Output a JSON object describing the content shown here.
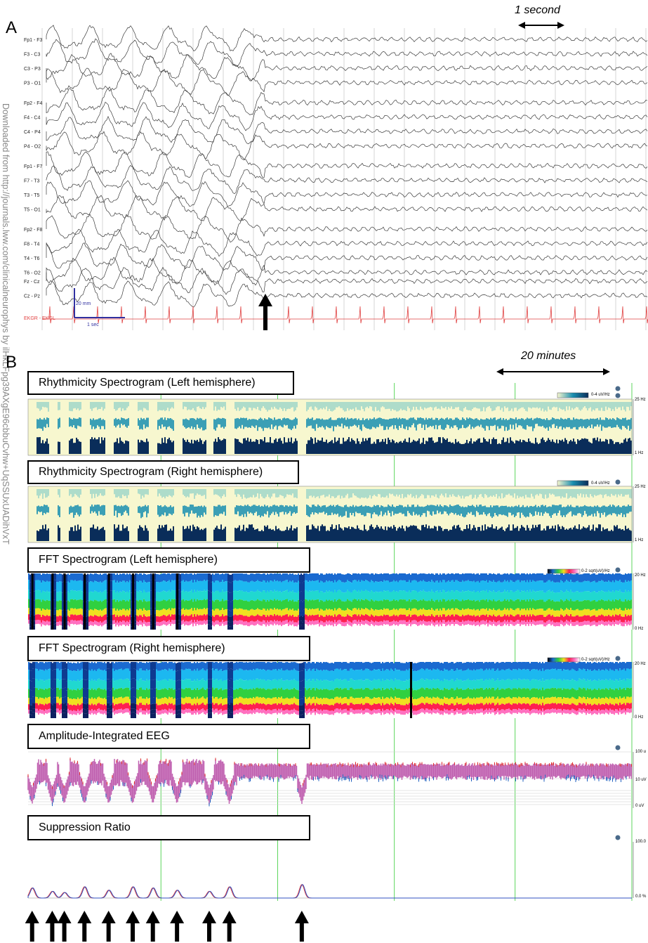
{
  "panel_a": {
    "letter": "A",
    "scale_label": "1 second",
    "channels": [
      "Fp1 - F3",
      "F3 - C3",
      "C3 - P3",
      "P3 - O1",
      "Fp2 - F4",
      "F4 - C4",
      "C4 - P4",
      "P4 - O2",
      "Fp1 - F7",
      "F7 - T3",
      "T3 - T5",
      "T5 - O1",
      "Fp2 - F8",
      "F8 - T4",
      "T4 - T6",
      "T6 - O2",
      "Fz - Cz",
      "Cz - Pz"
    ],
    "ekg_label": "EKGR - EKGL",
    "amp_scale": "20 mm",
    "time_scale": "1 sec",
    "colors": {
      "eeg": "#3a3a3a",
      "ekg": "#e04040",
      "scale": "#3030a0",
      "grid": "#bbbbbb"
    }
  },
  "watermark": "Downloaded from http://journals.lww.com/clinicalneurophys by ilHkLFpg39AXgE96cbbuCvhw+UqSSUxUADihVxT",
  "panel_b": {
    "letter": "B",
    "scale_label": "20 minutes",
    "panels": [
      {
        "title": "Rhythmicity Spectrogram (Left hemisphere)",
        "legend": "0-4 uV/Hz",
        "top_label": "25 Hz",
        "bottom_label": "1 Hz"
      },
      {
        "title": "Rhythmicity Spectrogram (Right hemisphere)",
        "legend": "0-4 uV/Hz",
        "top_label": "25 Hz",
        "bottom_label": "1 Hz"
      },
      {
        "title": "FFT Spectrogram (Left hemisphere)",
        "legend": "0-2 sqrt(uV)/Hz",
        "top_label": "20 Hz",
        "bottom_label": "0 Hz"
      },
      {
        "title": "FFT Spectrogram (Right hemisphere)",
        "legend": "0-2 sqrt(uV)/Hz",
        "top_label": "20 Hz",
        "bottom_label": "0 Hz"
      },
      {
        "title": "Amplitude-Integrated EEG",
        "legend": "",
        "top_label": "100 u",
        "mid_label": "10 uV",
        "bottom_label": "0 uV"
      },
      {
        "title": "Suppression Ratio",
        "legend": "",
        "top_label": "100.0",
        "bottom_label": "0.0 %"
      }
    ],
    "colors": {
      "rhythm_bg": "#f7f7cf",
      "rhythm_top": "#8fd0c8",
      "rhythm_mid": "#1a8fb0",
      "rhythm_low": "#0a2d5a",
      "marker": "#33cc33",
      "aeeg_fill": "#c060b0",
      "aeeg_red": "#e03030",
      "aeeg_blue": "#2060c0"
    }
  },
  "chart_data": [
    {
      "type": "line",
      "title": "",
      "description_source": "Panel A: 18-channel bipolar EEG plus EKG; high-amplitude rhythmic delta activity ending abruptly at arrow, followed by low-amplitude faster activity",
      "x_unit": "seconds",
      "events": [
        {
          "label": "arrow",
          "x": 5.0
        }
      ],
      "xlim": [
        0,
        15
      ]
    },
    {
      "type": "heatmap",
      "title": "",
      "x_unit": "minutes",
      "xlim": [
        0,
        150
      ],
      "arrow_events_minutes": [
        1,
        6,
        9,
        14,
        20,
        26,
        31,
        37,
        45,
        50,
        68
      ]
    },
    {
      "type": "line",
      "title": "Suppression Ratio",
      "x_unit": "minutes",
      "ylim": [
        0,
        100
      ],
      "peaks_minutes": [
        1,
        6,
        9,
        14,
        20,
        26,
        31,
        37,
        45,
        50,
        68
      ],
      "peak_values_percent": [
        18,
        12,
        10,
        20,
        14,
        20,
        18,
        14,
        12,
        20,
        24
      ]
    }
  ]
}
